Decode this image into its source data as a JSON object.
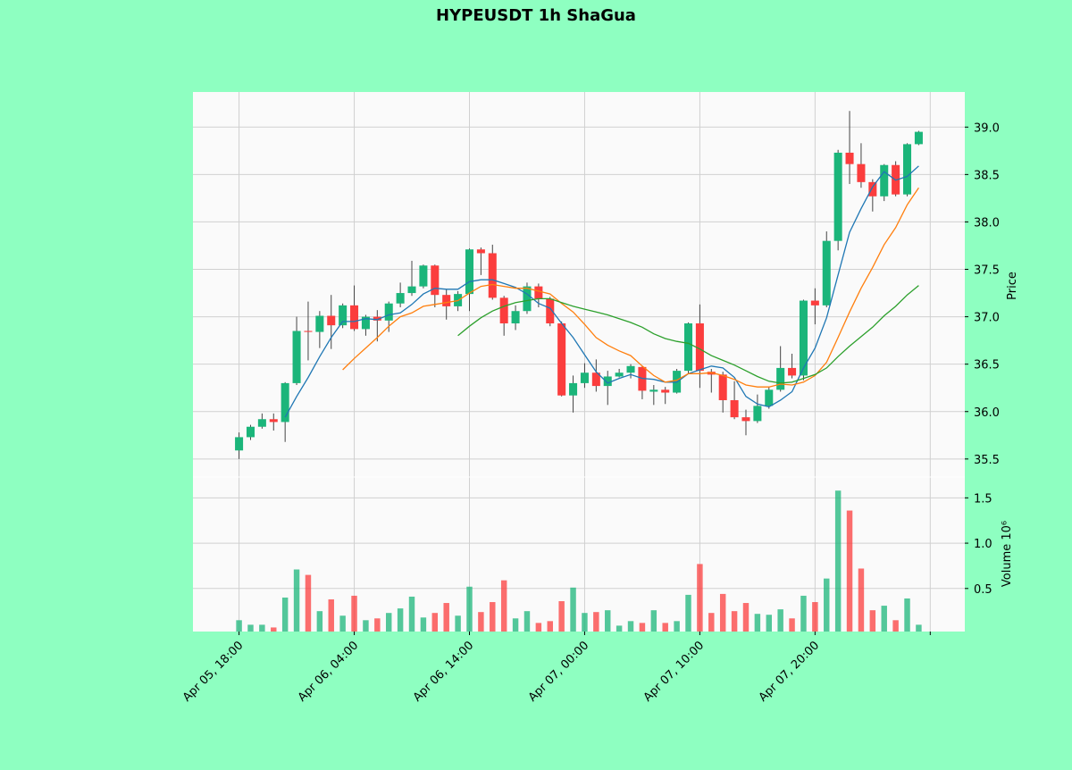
{
  "chart_data": {
    "type": "candlestick",
    "title": "HYPEUSDT 1h ShaGua",
    "ylabel": "Price",
    "volume_ylabel": "Volume  10⁶",
    "categories": [
      "Apr 05, 18:00",
      null,
      null,
      null,
      null,
      null,
      null,
      null,
      null,
      null,
      "Apr 06, 04:00",
      null,
      null,
      null,
      null,
      null,
      null,
      null,
      null,
      null,
      "Apr 06, 14:00",
      null,
      null,
      null,
      null,
      null,
      null,
      null,
      null,
      null,
      "Apr 07, 00:00",
      null,
      null,
      null,
      null,
      null,
      null,
      null,
      null,
      null,
      "Apr 07, 10:00",
      null,
      null,
      null,
      null,
      null,
      null,
      null,
      null,
      null,
      "Apr 07, 20:00",
      null,
      null,
      null,
      null,
      null,
      null,
      null,
      null,
      null
    ],
    "open": [
      35.59,
      35.73,
      35.84,
      35.92,
      35.89,
      36.3,
      36.85,
      36.84,
      37.01,
      36.91,
      37.12,
      36.87,
      37.0,
      36.96,
      37.14,
      37.25,
      37.32,
      37.54,
      37.23,
      37.11,
      37.24,
      37.71,
      37.67,
      37.2,
      36.93,
      37.06,
      37.32,
      37.19,
      36.93,
      36.17,
      36.3,
      36.41,
      36.27,
      36.37,
      36.41,
      36.47,
      36.21,
      36.23,
      36.2,
      36.43,
      36.93,
      36.42,
      36.39,
      36.12,
      35.94,
      35.9,
      36.06,
      36.23,
      36.46,
      36.38,
      37.17,
      37.12,
      37.8,
      38.73,
      38.61,
      38.42,
      38.27,
      38.6,
      38.29,
      38.82
    ],
    "high": [
      35.78,
      35.86,
      35.98,
      35.98,
      36.31,
      37.0,
      37.16,
      37.06,
      37.23,
      37.14,
      37.33,
      37.02,
      37.07,
      37.16,
      37.36,
      37.59,
      37.55,
      37.55,
      37.29,
      37.27,
      37.72,
      37.73,
      37.76,
      37.22,
      37.12,
      37.36,
      37.35,
      37.21,
      36.95,
      36.38,
      36.51,
      36.55,
      36.43,
      36.45,
      36.5,
      36.48,
      36.28,
      36.26,
      36.45,
      36.94,
      37.13,
      36.45,
      36.42,
      36.32,
      36.02,
      36.18,
      36.26,
      36.69,
      36.61,
      37.18,
      37.3,
      37.9,
      38.76,
      39.17,
      38.83,
      38.45,
      38.61,
      38.64,
      38.83,
      38.96
    ],
    "low": [
      35.5,
      35.7,
      35.82,
      35.8,
      35.68,
      36.28,
      36.54,
      36.67,
      36.66,
      36.88,
      36.85,
      36.8,
      36.74,
      36.84,
      37.1,
      37.22,
      37.3,
      37.1,
      36.97,
      37.06,
      37.06,
      37.44,
      37.18,
      36.8,
      36.86,
      37.03,
      37.1,
      36.9,
      36.16,
      35.99,
      36.25,
      36.21,
      36.07,
      36.36,
      36.35,
      36.13,
      36.07,
      36.08,
      36.19,
      36.4,
      36.25,
      36.2,
      35.99,
      35.92,
      35.75,
      35.88,
      36.03,
      36.21,
      36.35,
      36.33,
      36.92,
      37.1,
      37.7,
      38.4,
      38.36,
      38.11,
      38.22,
      38.27,
      38.27,
      38.81
    ],
    "close": [
      35.73,
      35.84,
      35.92,
      35.89,
      36.3,
      36.85,
      36.84,
      37.01,
      36.91,
      37.12,
      36.87,
      37.0,
      36.96,
      37.14,
      37.25,
      37.32,
      37.54,
      37.23,
      37.11,
      37.24,
      37.71,
      37.67,
      37.2,
      36.93,
      37.06,
      37.32,
      37.19,
      36.93,
      36.17,
      36.3,
      36.41,
      36.27,
      36.37,
      36.41,
      36.48,
      36.22,
      36.23,
      36.2,
      36.43,
      36.93,
      36.43,
      36.39,
      36.12,
      35.94,
      35.9,
      36.06,
      36.23,
      36.46,
      36.38,
      37.17,
      37.12,
      37.8,
      38.73,
      38.61,
      38.42,
      38.27,
      38.6,
      38.29,
      38.82,
      38.95
    ],
    "volume": [
      0.15,
      0.1,
      0.1,
      0.07,
      0.4,
      0.71,
      0.65,
      0.25,
      0.38,
      0.2,
      0.42,
      0.15,
      0.17,
      0.23,
      0.28,
      0.41,
      0.18,
      0.23,
      0.34,
      0.2,
      0.52,
      0.24,
      0.35,
      0.59,
      0.17,
      0.25,
      0.12,
      0.14,
      0.36,
      0.51,
      0.23,
      0.24,
      0.26,
      0.09,
      0.14,
      0.12,
      0.26,
      0.12,
      0.14,
      0.43,
      0.77,
      0.23,
      0.44,
      0.25,
      0.34,
      0.22,
      0.21,
      0.27,
      0.17,
      0.42,
      0.35,
      0.61,
      1.58,
      1.36,
      0.72,
      0.26,
      0.31,
      0.15,
      0.39,
      0.1
    ],
    "moving_averages": [
      {
        "color": "#1f77b4",
        "values": [
          null,
          null,
          null,
          null,
          35.94,
          36.16,
          36.36,
          36.58,
          36.78,
          36.95,
          36.95,
          36.98,
          36.97,
          37.02,
          37.04,
          37.13,
          37.24,
          37.3,
          37.29,
          37.29,
          37.37,
          37.39,
          37.39,
          37.35,
          37.31,
          37.24,
          37.14,
          37.09,
          36.93,
          36.78,
          36.6,
          36.42,
          36.3,
          36.35,
          36.39,
          36.35,
          36.34,
          36.31,
          36.31,
          36.4,
          36.44,
          36.48,
          36.46,
          36.36,
          36.16,
          36.08,
          36.05,
          36.12,
          36.21,
          36.46,
          36.67,
          36.99,
          37.44,
          37.89,
          38.14,
          38.37,
          38.53,
          38.44,
          38.48,
          38.59
        ]
      },
      {
        "color": "#ff7f0e",
        "values": [
          null,
          null,
          null,
          null,
          null,
          null,
          null,
          null,
          null,
          36.44,
          36.56,
          36.67,
          36.78,
          36.9,
          37.0,
          37.04,
          37.11,
          37.13,
          37.15,
          37.17,
          37.25,
          37.32,
          37.34,
          37.32,
          37.3,
          37.3,
          37.27,
          37.24,
          37.14,
          37.05,
          36.92,
          36.78,
          36.7,
          36.64,
          36.59,
          36.48,
          36.38,
          36.31,
          36.33,
          36.4,
          36.4,
          36.41,
          36.38,
          36.34,
          36.28,
          36.26,
          36.26,
          36.29,
          36.28,
          36.31,
          36.38,
          36.52,
          36.78,
          37.05,
          37.3,
          37.52,
          37.76,
          37.94,
          38.18,
          38.36
        ]
      },
      {
        "color": "#2ca02c",
        "values": [
          null,
          null,
          null,
          null,
          null,
          null,
          null,
          null,
          null,
          null,
          null,
          null,
          null,
          null,
          null,
          null,
          null,
          null,
          null,
          36.8,
          36.9,
          36.99,
          37.06,
          37.11,
          37.15,
          37.17,
          37.19,
          37.19,
          37.15,
          37.11,
          37.08,
          37.05,
          37.02,
          36.98,
          36.94,
          36.89,
          36.82,
          36.77,
          36.74,
          36.72,
          36.66,
          36.59,
          36.54,
          36.49,
          36.43,
          36.37,
          36.32,
          36.3,
          36.31,
          36.35,
          36.39,
          36.46,
          36.58,
          36.69,
          36.79,
          36.89,
          37.01,
          37.11,
          37.23,
          37.33
        ]
      }
    ],
    "up_color": "#1bb57a",
    "down_color": "#fb3d3d",
    "xlim": [
      -4,
      63
    ],
    "xticks": [
      0,
      10,
      20,
      30,
      40,
      50,
      60
    ],
    "ylim": [
      35.31,
      39.37
    ],
    "yticks": [
      35.5,
      {
        "value": 36,
        "label": "36.0"
      },
      36.5,
      {
        "value": 37,
        "label": "37.0"
      },
      37.5,
      {
        "value": 38,
        "label": "38.0"
      },
      38.5,
      {
        "value": 39,
        "label": "39.0"
      }
    ],
    "volume_ylim": [
      0.025,
      1.73
    ],
    "volume_yticks": [
      0.5,
      {
        "value": 1,
        "label": "1.0"
      },
      1.5
    ],
    "grid": true
  }
}
